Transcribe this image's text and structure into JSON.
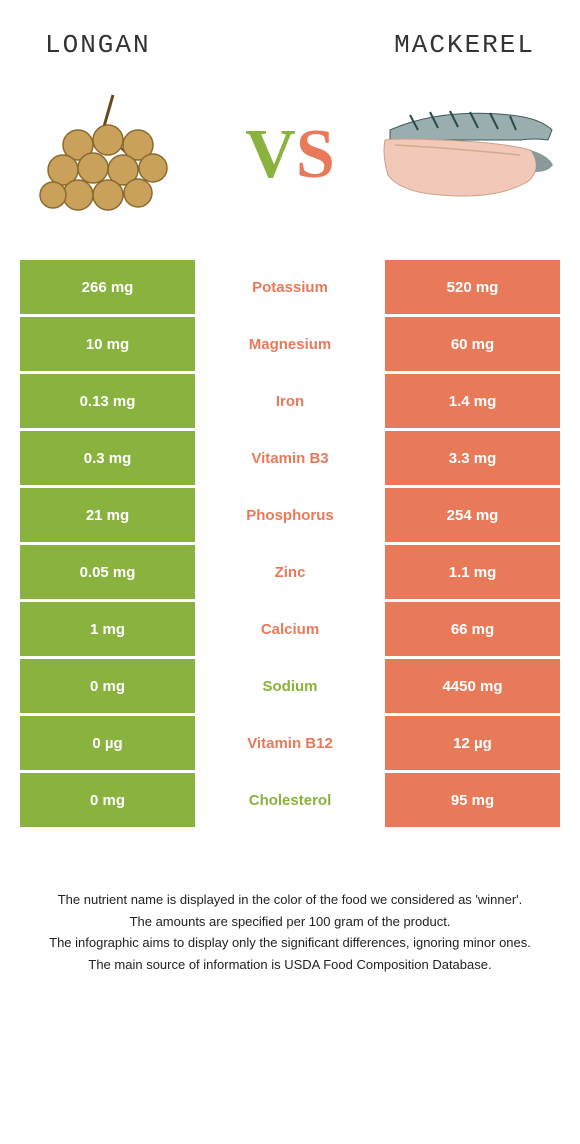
{
  "header": {
    "left": "LONGAN",
    "right": "MACKEREL"
  },
  "vs": {
    "v": "V",
    "s": "S"
  },
  "colors": {
    "left": "#8ab23f",
    "right": "#e87a5a",
    "text_dark": "#333333",
    "bg": "#ffffff"
  },
  "table": {
    "left_color": "#8ab23f",
    "right_color": "#e87a5a",
    "rows": [
      {
        "left": "266 mg",
        "label": "Potassium",
        "right": "520 mg",
        "winner": "right"
      },
      {
        "left": "10 mg",
        "label": "Magnesium",
        "right": "60 mg",
        "winner": "right"
      },
      {
        "left": "0.13 mg",
        "label": "Iron",
        "right": "1.4 mg",
        "winner": "right"
      },
      {
        "left": "0.3 mg",
        "label": "Vitamin B3",
        "right": "3.3 mg",
        "winner": "right"
      },
      {
        "left": "21 mg",
        "label": "Phosphorus",
        "right": "254 mg",
        "winner": "right"
      },
      {
        "left": "0.05 mg",
        "label": "Zinc",
        "right": "1.1 mg",
        "winner": "right"
      },
      {
        "left": "1 mg",
        "label": "Calcium",
        "right": "66 mg",
        "winner": "right"
      },
      {
        "left": "0 mg",
        "label": "Sodium",
        "right": "4450 mg",
        "winner": "left"
      },
      {
        "left": "0 µg",
        "label": "Vitamin B12",
        "right": "12 µg",
        "winner": "right"
      },
      {
        "left": "0 mg",
        "label": "Cholesterol",
        "right": "95 mg",
        "winner": "left"
      }
    ]
  },
  "footer": {
    "lines": [
      "The nutrient name is displayed in the color of the food we considered as 'winner'.",
      "The amounts are specified per 100 gram of the product.",
      "The infographic aims to display only the significant differences, ignoring minor ones.",
      "The main source of information is USDA Food Composition Database."
    ]
  }
}
